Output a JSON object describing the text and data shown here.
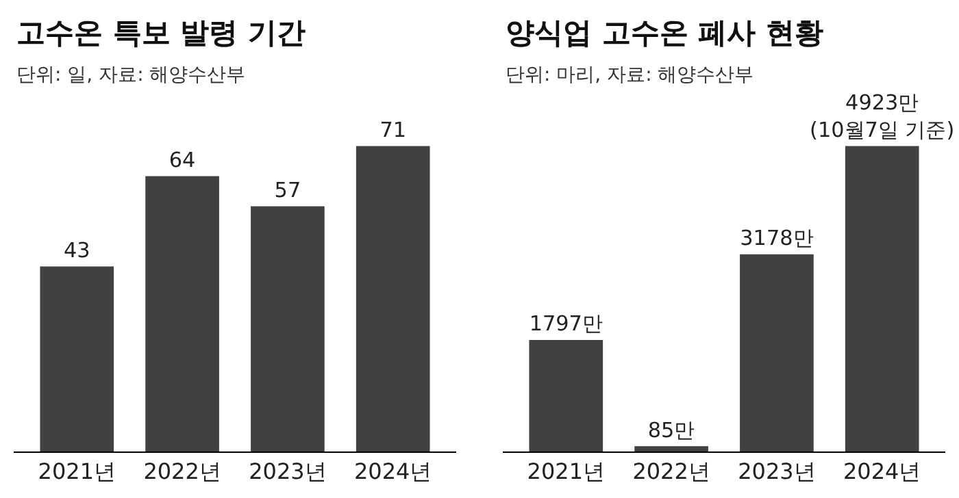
{
  "chart_data": [
    {
      "type": "bar",
      "title": "고수온 특보 발령 기간",
      "subtitle": "단위: 일, 자료: 해양수산부",
      "categories": [
        "2021년",
        "2022년",
        "2023년",
        "2024년"
      ],
      "values": [
        43,
        64,
        57,
        71
      ],
      "color": "#414042",
      "data_labels": true,
      "tick_labels": "x"
    },
    {
      "type": "bar",
      "title": "양식업 고수온 폐사 현황",
      "subtitle": "단위: 마리, 자료: 해양수산부",
      "categories": [
        "2021년",
        "2022년",
        "2023년",
        "2024년"
      ],
      "values": [
        1797,
        85,
        3178,
        4923
      ],
      "value_labels": [
        "1797만",
        "85만",
        "3178만",
        "4923만\n(10월7일 기준)"
      ],
      "color": "#414042",
      "tick_labels": "x"
    }
  ]
}
